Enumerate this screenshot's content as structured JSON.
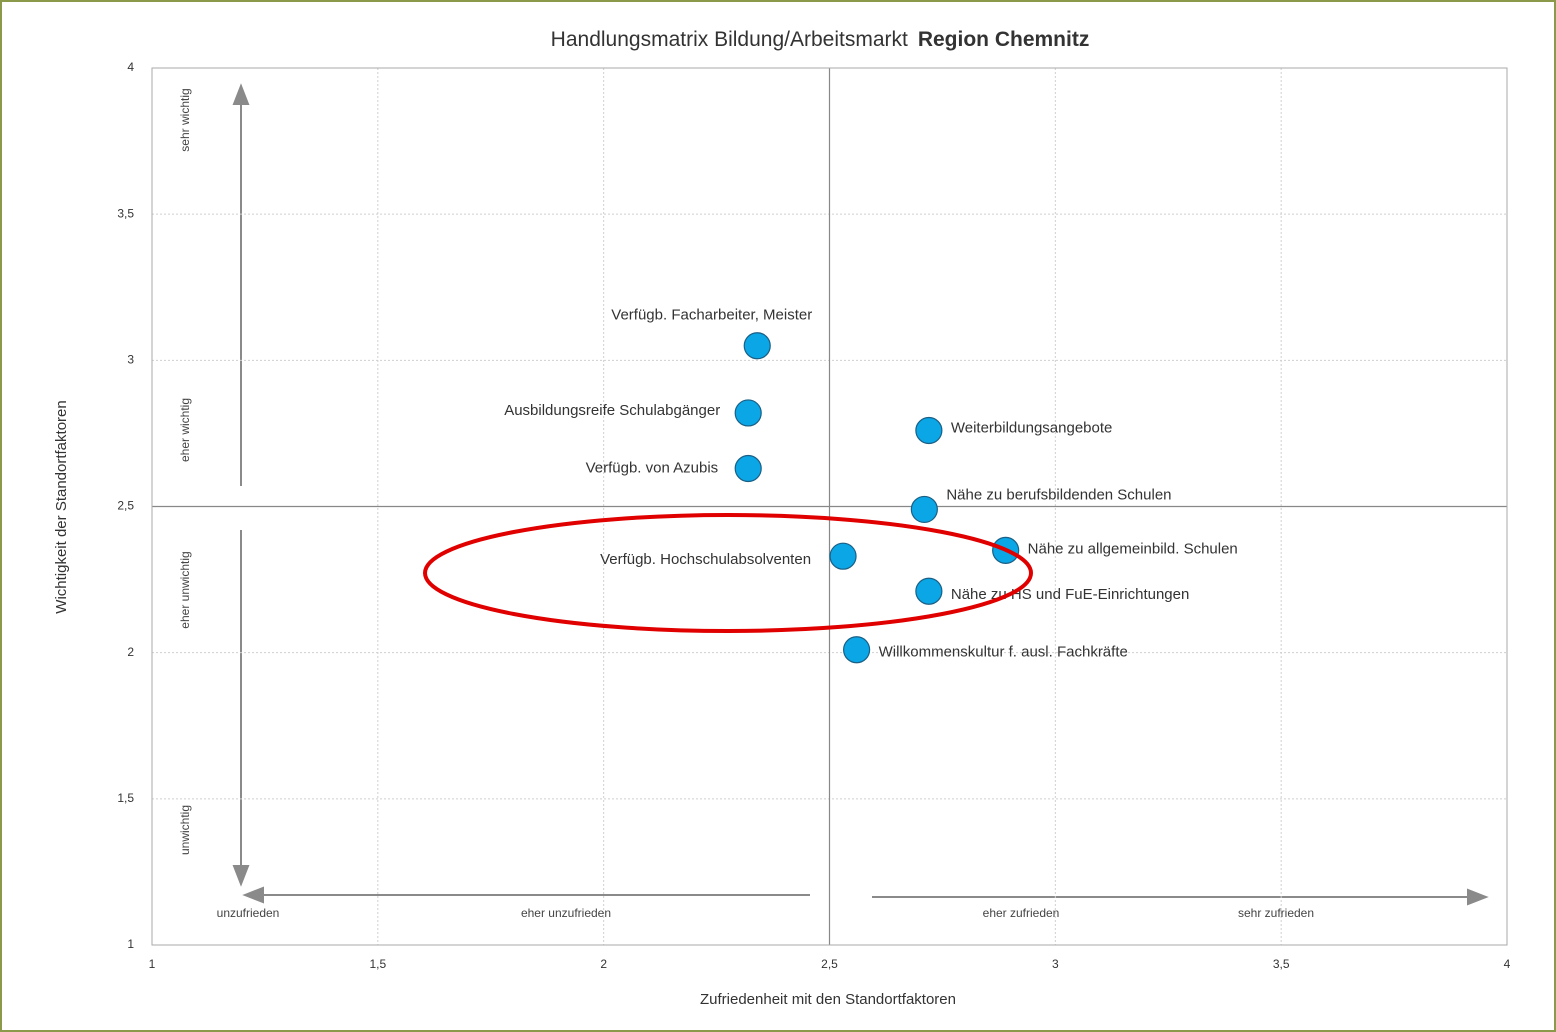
{
  "chart_data": {
    "type": "scatter",
    "title": "Handlungsmatrix  Bildung/Arbeitsmarkt",
    "title_emphasis": "Region Chemnitz",
    "x_label": "Zufriedenheit mit den Standortfaktoren",
    "y_label": "Wichtigkeit der Standortfaktoren",
    "xlim": [
      1,
      4
    ],
    "ylim": [
      1,
      4
    ],
    "xticks": [
      1,
      {
        "value": 1.5,
        "label": "1,5"
      },
      2,
      {
        "value": 2.5,
        "label": "2,5"
      },
      3,
      {
        "value": 3.5,
        "label": "3,5"
      },
      4
    ],
    "yticks": [
      1,
      {
        "value": 1.5,
        "label": "1,5"
      },
      2,
      {
        "value": 2.5,
        "label": "2,5"
      },
      3,
      {
        "value": 3.5,
        "label": "3,5"
      },
      4
    ],
    "grid": true,
    "reference_lines": {
      "x": 2.5,
      "y": 2.5
    },
    "series": [
      {
        "color": "#0aa6e6",
        "x": [
          2.34,
          2.32,
          2.32,
          2.72,
          2.71,
          2.89,
          2.53,
          2.72,
          2.56
        ],
        "values": [
          3.05,
          2.82,
          2.63,
          2.76,
          2.49,
          2.35,
          2.33,
          2.21,
          2.01
        ],
        "point_labels": [
          "Verfügb. Facharbeiter, Meister",
          "Ausbildungsreife Schulabgänger",
          "Verfügb. von Azubis",
          "Weiterbildungsangebote",
          "Nähe zu berufsbildenden Schulen",
          "Nähe zu allgemeinbild.  Schulen",
          "Verfügb.  Hochschulabsolventen",
          "Nähe zu HS und FuE-Einrichtungen",
          "Willkommenskultur  f. ausl. Fachkräfte"
        ]
      }
    ],
    "y_annotations": [
      "sehr wichtig",
      "eher wichtig",
      "eher unwichtig",
      "unwichtig"
    ],
    "x_annotations": [
      "unzufrieden",
      "eher unzufrieden",
      "eher zufrieden",
      "sehr zufrieden"
    ]
  }
}
